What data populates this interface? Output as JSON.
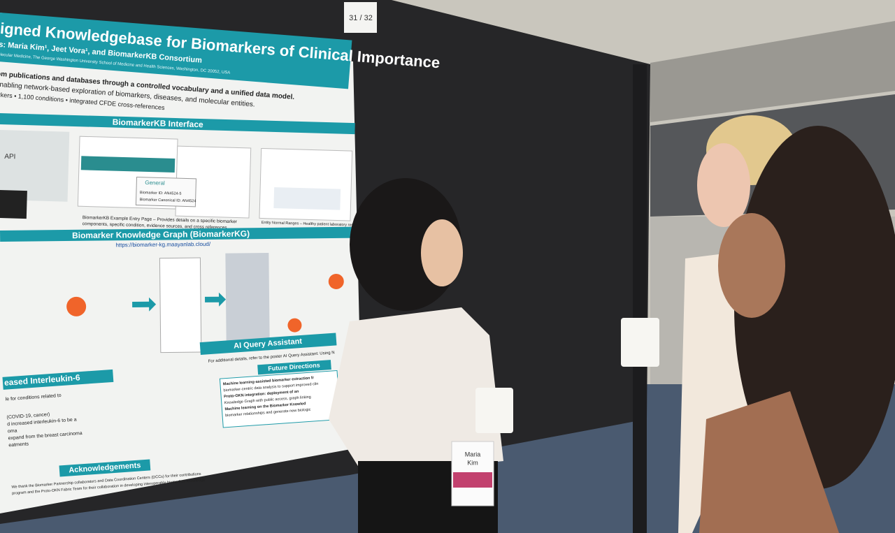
{
  "sign": "31 / 32",
  "poster": {
    "title": "igned Knowledgebase for Biomarkers of Clinical Importance",
    "authors": "s: Maria Kim¹, Jeet Vora¹, and BiomarkerKB Consortium",
    "affiliation": "olecular Medicine, The George Washington University School of Medicine and Health Sciences, Washington, DC 20052, USA",
    "intro": [
      "om publications and databases through a controlled vocabulary and a unified data model.",
      "enabling network-based exploration of biomarkers, diseases, and molecular entities.",
      "arkers • 1,100 conditions • integrated CFDE cross-references"
    ],
    "interface": {
      "heading": "BiomarkerKB Interface",
      "api": "API",
      "general": "General",
      "id": "Biomarker ID: AN4524-5",
      "canonical": "Biomarker Canonical ID: AN4524",
      "caption": [
        "BiomarkerKB Example Entry Page – Provides details on a specific biomarker",
        "components, specific condition, evidence sources, and cross references."
      ],
      "ranges": "Entity Normal Ranges – Healthy patient laboratory result"
    },
    "graph": {
      "heading": "Biomarker Knowledge Graph (BiomarkerKG)",
      "url": "https://biomarker-kg.maayanlab.cloud/"
    },
    "ai": {
      "heading": "AI Query Assistant",
      "text": "For additional details, refer to the poster AI Query Assistant: Using N"
    },
    "il6": {
      "heading": "eased Interleukin-6",
      "lines": [
        "le for conditions related to",
        "(COVID-19, cancer)",
        "d increased interleukin-6 to be a",
        "oma",
        "expand from the breast carcinoma",
        "eatments"
      ]
    },
    "future": {
      "heading": "Future Directions",
      "lines": [
        "Machine learning-assisted biomarker extraction fr",
        "biomarker-centric data analysis to support improved clin",
        "Proto-OKN integration: deployment of an",
        "Knowledge Graph with public access, graph linking",
        "Machine learning on the Biomarker Knowled",
        "biomarker relationships and generate new biologic"
      ]
    },
    "ack": {
      "heading": "Acknowledgements",
      "lines": [
        "We thank the Biomarker Partnership collaborators and Data Coordination Centers (DCCs) for their contributions",
        "program and the Proto-OKN Fabric Team for their collaboration in developing interoperable biomedical knowledge"
      ]
    }
  },
  "badge": {
    "first": "Maria",
    "last": "Kim"
  }
}
